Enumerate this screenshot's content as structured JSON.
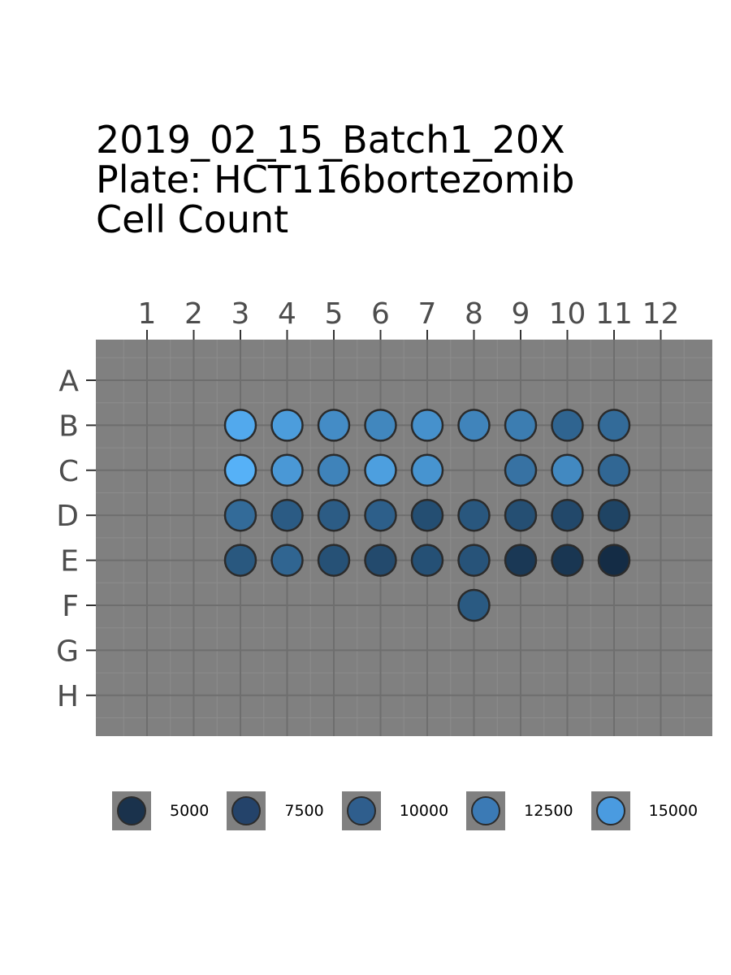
{
  "title": {
    "line1": "2019_02_15_Batch1_20X",
    "line2": "Plate: HCT116bortezomib",
    "line3": "Cell Count"
  },
  "chart_data": {
    "type": "scatter",
    "subtype": "plate-map",
    "columns": [
      "1",
      "2",
      "3",
      "4",
      "5",
      "6",
      "7",
      "8",
      "9",
      "10",
      "11",
      "12"
    ],
    "rows": [
      "A",
      "B",
      "C",
      "D",
      "E",
      "F",
      "G",
      "H"
    ],
    "x_axis_position": "top",
    "background_color": "#808080",
    "grid": true,
    "value_label": "Cell Count",
    "color_scale": {
      "low": {
        "value": 4500,
        "color": "#132B43"
      },
      "high": {
        "value": 16500,
        "color": "#56B1F7"
      }
    },
    "wells": [
      {
        "row": "B",
        "col": 3,
        "value": 15800
      },
      {
        "row": "B",
        "col": 4,
        "value": 14700
      },
      {
        "row": "B",
        "col": 5,
        "value": 13200
      },
      {
        "row": "B",
        "col": 6,
        "value": 12700
      },
      {
        "row": "B",
        "col": 7,
        "value": 13600
      },
      {
        "row": "B",
        "col": 8,
        "value": 12500
      },
      {
        "row": "B",
        "col": 9,
        "value": 11800
      },
      {
        "row": "B",
        "col": 10,
        "value": 9600
      },
      {
        "row": "B",
        "col": 11,
        "value": 10200
      },
      {
        "row": "C",
        "col": 3,
        "value": 16500
      },
      {
        "row": "C",
        "col": 4,
        "value": 14300
      },
      {
        "row": "C",
        "col": 5,
        "value": 12400
      },
      {
        "row": "C",
        "col": 6,
        "value": 14900
      },
      {
        "row": "C",
        "col": 7,
        "value": 13900
      },
      {
        "row": "C",
        "col": 9,
        "value": 10900
      },
      {
        "row": "C",
        "col": 10,
        "value": 12900
      },
      {
        "row": "C",
        "col": 11,
        "value": 9900
      },
      {
        "row": "D",
        "col": 3,
        "value": 10200
      },
      {
        "row": "D",
        "col": 4,
        "value": 8800
      },
      {
        "row": "D",
        "col": 5,
        "value": 8900
      },
      {
        "row": "D",
        "col": 6,
        "value": 9200
      },
      {
        "row": "D",
        "col": 7,
        "value": 7600
      },
      {
        "row": "D",
        "col": 8,
        "value": 8400
      },
      {
        "row": "D",
        "col": 9,
        "value": 7700
      },
      {
        "row": "D",
        "col": 10,
        "value": 7100
      },
      {
        "row": "D",
        "col": 11,
        "value": 6700
      },
      {
        "row": "E",
        "col": 3,
        "value": 8500
      },
      {
        "row": "E",
        "col": 4,
        "value": 9700
      },
      {
        "row": "E",
        "col": 5,
        "value": 7900
      },
      {
        "row": "E",
        "col": 6,
        "value": 7300
      },
      {
        "row": "E",
        "col": 7,
        "value": 7800
      },
      {
        "row": "E",
        "col": 8,
        "value": 8100
      },
      {
        "row": "E",
        "col": 9,
        "value": 5700
      },
      {
        "row": "E",
        "col": 10,
        "value": 5500
      },
      {
        "row": "E",
        "col": 11,
        "value": 4600
      },
      {
        "row": "F",
        "col": 8,
        "value": 8700
      }
    ],
    "legend": {
      "position": "bottom",
      "entries": [
        {
          "label": "5000",
          "color": "#1A324C"
        },
        {
          "label": "7500",
          "color": "#24436A"
        },
        {
          "label": "10000",
          "color": "#2F5E8D"
        },
        {
          "label": "12500",
          "color": "#3B7AB5"
        },
        {
          "label": "15000",
          "color": "#4A9BE0"
        }
      ]
    }
  }
}
